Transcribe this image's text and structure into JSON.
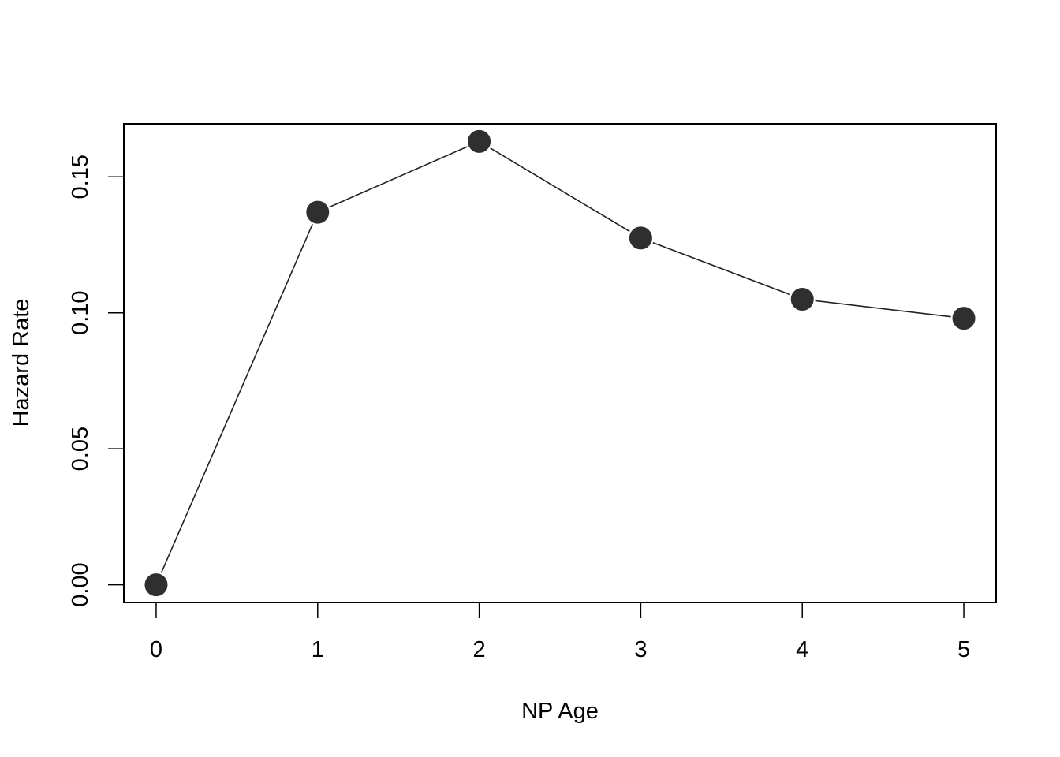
{
  "chart_data": {
    "type": "line",
    "title": "",
    "xlabel": "NP Age",
    "ylabel": "Hazard Rate",
    "x": [
      0,
      1,
      2,
      3,
      4,
      5
    ],
    "series": [
      {
        "values": [
          0.0,
          0.137,
          0.163,
          0.1275,
          0.105,
          0.098
        ]
      }
    ],
    "xticks": [
      0,
      1,
      2,
      3,
      4,
      5
    ],
    "xtick_labels": [
      "0",
      "1",
      "2",
      "3",
      "4",
      "5"
    ],
    "yticks": [
      0.0,
      0.05,
      0.1,
      0.15
    ],
    "ytick_labels": [
      "0.00",
      "0.05",
      "0.10",
      "0.15"
    ],
    "xlim": [
      -0.2,
      5.2
    ],
    "ylim": [
      -0.0065,
      0.1695
    ],
    "grid": false,
    "legend": "none",
    "colors": {
      "marker": "#2f2f2f",
      "line": "#222222"
    }
  }
}
